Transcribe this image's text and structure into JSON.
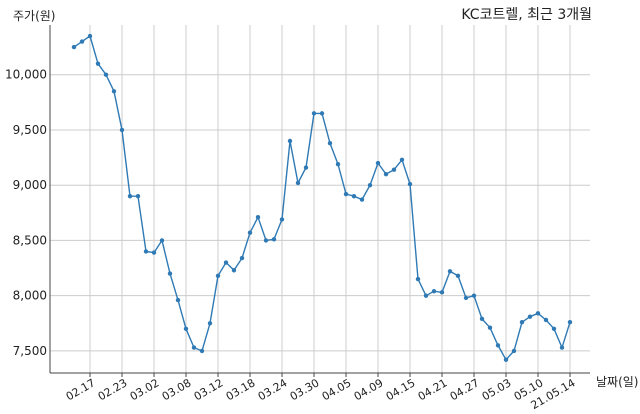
{
  "chart_data": {
    "type": "line",
    "title": "KC코트렐, 최근 3개월",
    "ylabel": "주가(원)",
    "xlabel": "날짜(일)",
    "ylim": [
      7300,
      10450
    ],
    "yticks": [
      7500,
      8000,
      8500,
      9000,
      9500,
      10000
    ],
    "ytick_labels": [
      "7,500",
      "8,000",
      "8,500",
      "9,000",
      "9,500",
      "10,000"
    ],
    "xtick_labels": [
      "02.17",
      "02.23",
      "03.02",
      "03.08",
      "03.12",
      "03.18",
      "03.24",
      "03.30",
      "04.05",
      "04.09",
      "04.15",
      "04.21",
      "04.27",
      "05.03",
      "05.10",
      "21.05.14"
    ],
    "xtick_index": [
      2,
      6,
      10,
      14,
      18,
      22,
      26,
      30,
      34,
      38,
      42,
      46,
      50,
      54,
      58,
      62
    ],
    "grid": true,
    "color": "#2f7ab5",
    "series": [
      {
        "name": "",
        "values": [
          10250,
          10300,
          10350,
          10100,
          10000,
          9850,
          9500,
          8900,
          8900,
          8400,
          8390,
          8500,
          8200,
          7960,
          7700,
          7530,
          7500,
          7750,
          8180,
          8300,
          8230,
          8340,
          8570,
          8710,
          8500,
          8510,
          8690,
          9400,
          9020,
          9160,
          9650,
          9650,
          9380,
          9190,
          8920,
          8900,
          8870,
          9000,
          9200,
          9100,
          9140,
          9230,
          9010,
          8150,
          8000,
          8040,
          8030,
          8220,
          8180,
          7980,
          8000,
          7790,
          7710,
          7550,
          7420,
          7500,
          7760,
          7810,
          7840,
          7780,
          7700,
          7530,
          7760
        ]
      }
    ]
  }
}
